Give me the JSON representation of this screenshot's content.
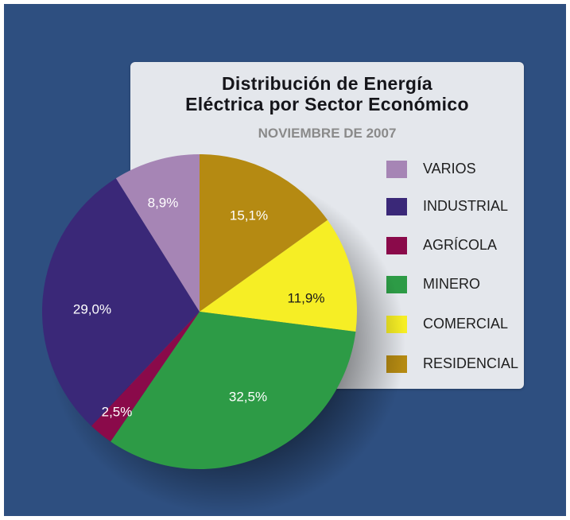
{
  "chart_data": {
    "type": "pie",
    "title": "Distribución de Energía\nEléctrica por Sector Económico",
    "subtitle": "NOVIEMBRE DE 2007",
    "slices": [
      {
        "label": "RESIDENCIAL",
        "value": 15.1,
        "display": "15,1%",
        "color": "#b58a12",
        "text_color": "#ffffff"
      },
      {
        "label": "COMERCIAL",
        "value": 11.9,
        "display": "11,9%",
        "color": "#f6ee25",
        "text_color": "#1a1a1a"
      },
      {
        "label": "MINERO",
        "value": 32.5,
        "display": "32,5%",
        "color": "#2d9b46",
        "text_color": "#ffffff"
      },
      {
        "label": "AGRÍCOLA",
        "value": 2.5,
        "display": "2,5%",
        "color": "#8a0a4a",
        "text_color": "#ffffff"
      },
      {
        "label": "INDUSTRIAL",
        "value": 29.0,
        "display": "29,0%",
        "color": "#3a2878",
        "text_color": "#ffffff"
      },
      {
        "label": "VARIOS",
        "value": 8.9,
        "display": "8,9%",
        "color": "#a685b5",
        "text_color": "#ffffff"
      }
    ],
    "legend": [
      {
        "label": "VARIOS",
        "color": "#a685b5"
      },
      {
        "label": "INDUSTRIAL",
        "color": "#3a2878"
      },
      {
        "label": "AGRÍCOLA",
        "color": "#8a0a4a"
      },
      {
        "label": "MINERO",
        "color": "#2d9b46"
      },
      {
        "label": "COMERCIAL",
        "color": "#f6ee25"
      },
      {
        "label": "RESIDENCIAL",
        "color": "#b58a12"
      }
    ],
    "start_angle": "12 o'clock",
    "direction": "clockwise",
    "legend_placement": "right"
  },
  "colors": {
    "background": "#2e4f80",
    "card": "#e4e7ec"
  }
}
